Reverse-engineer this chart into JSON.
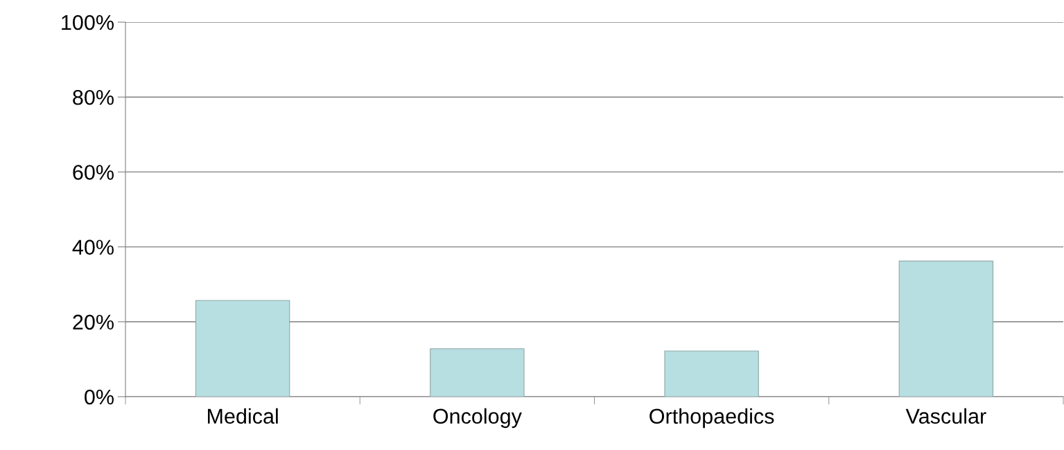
{
  "chart_data": {
    "type": "bar",
    "categories": [
      "Medical",
      "Oncology",
      "Orthopaedics",
      "Vascular"
    ],
    "values": [
      25.7,
      12.8,
      12.2,
      36.2
    ],
    "color": "#b7dfe1",
    "ylim": [
      0,
      100
    ],
    "yticks": [
      {
        "value": 0,
        "label": "0%"
      },
      {
        "value": 20,
        "label": "20%"
      },
      {
        "value": 40,
        "label": "40%"
      },
      {
        "value": 60,
        "label": "60%"
      },
      {
        "value": 80,
        "label": "80%"
      },
      {
        "value": 100,
        "label": "100%"
      }
    ],
    "grid": "y"
  }
}
